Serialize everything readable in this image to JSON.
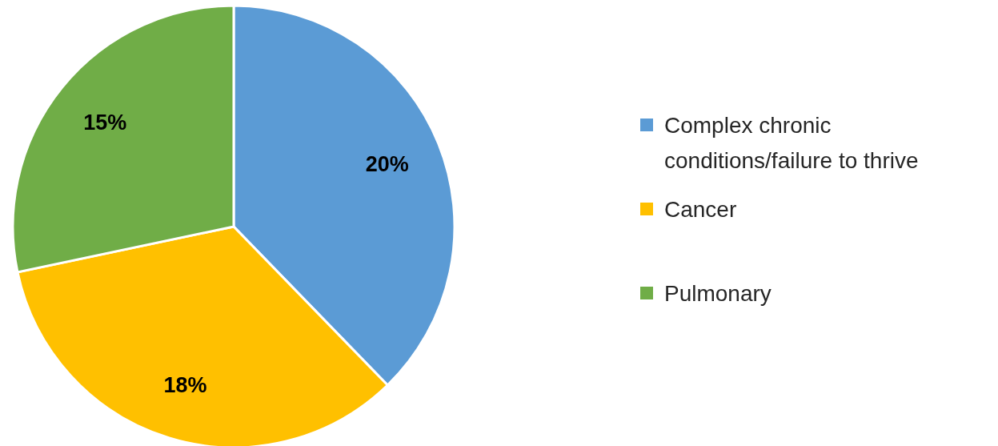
{
  "chart_data": {
    "type": "pie",
    "categories": [
      "Complex chronic conditions/failure to thrive",
      "Cancer",
      "Pulmonary"
    ],
    "values": [
      20,
      18,
      15
    ],
    "colors": [
      "#5b9bd5",
      "#ffc000",
      "#70ad47"
    ],
    "value_labels": [
      "20%",
      "18%",
      "15%"
    ],
    "legend": "right"
  }
}
